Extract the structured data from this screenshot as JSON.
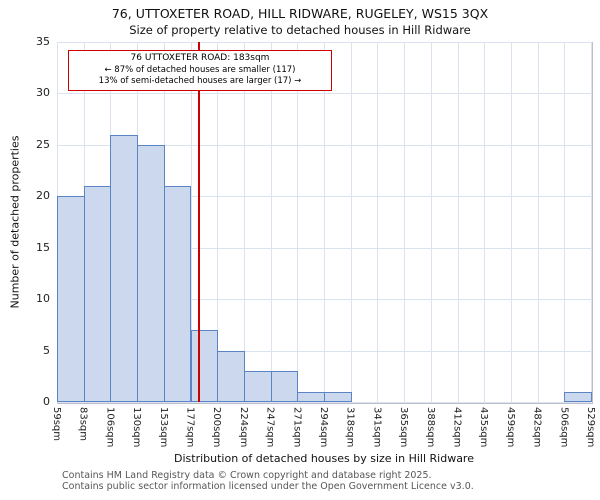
{
  "title": "76, UTTOXETER ROAD, HILL RIDWARE, RUGELEY, WS15 3QX",
  "subtitle": "Size of property relative to detached houses in Hill Ridware",
  "chart_data": {
    "type": "bar",
    "categories": [
      "59sqm",
      "83sqm",
      "106sqm",
      "130sqm",
      "153sqm",
      "177sqm",
      "200sqm",
      "224sqm",
      "247sqm",
      "271sqm",
      "294sqm",
      "318sqm",
      "341sqm",
      "365sqm",
      "388sqm",
      "412sqm",
      "435sqm",
      "459sqm",
      "482sqm",
      "506sqm",
      "529sqm"
    ],
    "values": [
      20,
      21,
      26,
      25,
      21,
      7,
      5,
      3,
      3,
      1,
      1,
      0,
      0,
      0,
      0,
      0,
      0,
      0,
      0,
      1
    ],
    "title": "76, UTTOXETER ROAD, HILL RIDWARE, RUGELEY, WS15 3QX",
    "xlabel": "Distribution of detached houses by size in Hill Ridware",
    "ylabel": "Number of detached properties",
    "ylim": [
      0,
      35
    ],
    "yticks": [
      0,
      5,
      10,
      15,
      20,
      25,
      30,
      35
    ],
    "grid": true,
    "legend": "none",
    "colors": {
      "bar_fill": "#ccd8ee",
      "bar_border": "#5b84c4",
      "marker_line": "#cc0000",
      "grid": "#dce3f0"
    },
    "marker": {
      "value_sqm": 183,
      "x_axis_range_sqm": [
        59,
        529
      ],
      "label_lines": [
        "76 UTTOXETER ROAD: 183sqm",
        "← 87% of detached houses are smaller (117)",
        "13% of semi-detached houses are larger (17) →"
      ]
    }
  },
  "footer": {
    "line1": "Contains HM Land Registry data © Crown copyright and database right 2025.",
    "line2": "Contains public sector information licensed under the Open Government Licence v3.0."
  }
}
